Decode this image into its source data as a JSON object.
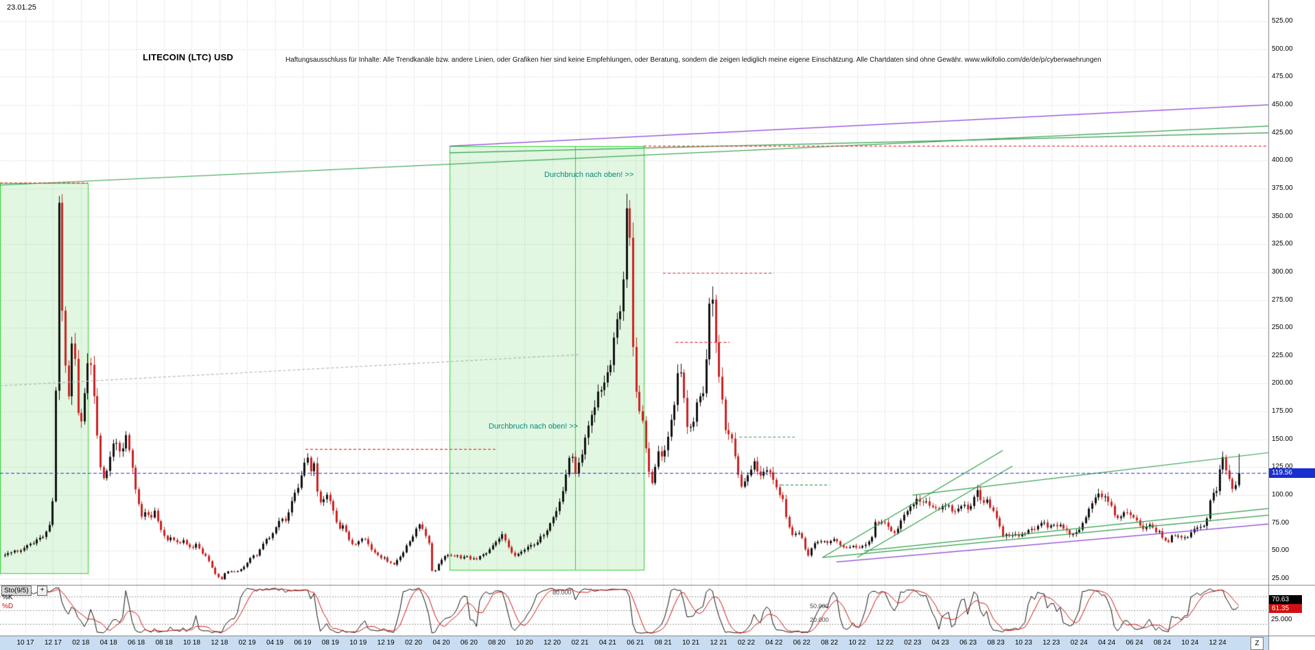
{
  "header": {
    "date_label": "23.01.25",
    "title": "LITECOIN (LTC) USD",
    "disclaimer": "Haftungsausschluss für Inhalte: Alle Trendkanäle bzw. andere Linien, oder Grafiken hier sind keine Empfehlungen, oder Beratung, sondern die zeigen lediglich meine eigene Einschätzung. Alle Chartdaten sind ohne Gewähr.  www.wikifolio.com/de/de/p/cyberwaehrungen"
  },
  "annotations": {
    "breakout_top": "Durchbruch nach oben! >>",
    "breakout_mid": "Durchbruch nach oben! >>"
  },
  "price_axis": {
    "labels": [
      "525.00",
      "500.00",
      "475.00",
      "450.00",
      "425.00",
      "400.00",
      "375.00",
      "350.00",
      "325.00",
      "300.00",
      "275.00",
      "250.00",
      "225.00",
      "200.00",
      "175.00",
      "150.00",
      "125.00",
      "100.00",
      "75.00",
      "50.00",
      "25.00"
    ],
    "current_price": "119.56"
  },
  "date_axis": {
    "labels": [
      "10 17",
      "12 17",
      "02 18",
      "04 18",
      "06 18",
      "08 18",
      "10 18",
      "12 18",
      "02 19",
      "04 19",
      "06 19",
      "08 19",
      "10 19",
      "12 19",
      "02 20",
      "04 20",
      "06 20",
      "08 20",
      "10 20",
      "12 20",
      "02 21",
      "04 21",
      "06 21",
      "08 21",
      "10 21",
      "12 21",
      "02 22",
      "04 22",
      "06 22",
      "08 22",
      "10 22",
      "12 22",
      "02 23",
      "04 23",
      "06 23",
      "08 23",
      "10 23",
      "12 23",
      "02 24",
      "04 24",
      "06 24",
      "08 24",
      "10 24",
      "12 24"
    ],
    "end_button": "Z"
  },
  "stochastic": {
    "name": "Sto(9/5)",
    "plus_button": "+",
    "k_label": "%K",
    "d_label": "%D",
    "k_value": "70.63",
    "d_value": "61.35",
    "levels": [
      "80.000",
      "50.000",
      "20.000"
    ],
    "axis_label": "25.000"
  },
  "colors": {
    "up": "#111111",
    "down": "#cc2222",
    "box_fill": "rgba(140,225,140,0.26)",
    "box_border": "#2fd32f",
    "green_line": "#2e9e4a",
    "purple_line": "#8a3fd8",
    "red_dashed": "#e83030",
    "gray_dashed": "#b5b5b5",
    "blue_price": "#1a2de0",
    "grid": "#c9c9c9",
    "k_color": "#111111",
    "d_color": "#d01111",
    "annotation": "#00897b",
    "badge_blue": "#1a2fd0",
    "date_strip": "#c8ddf2"
  },
  "chart_data": {
    "type": "candlestick",
    "title": "LITECOIN (LTC) USD",
    "timeframe": "weekly",
    "x_range": [
      "2017-08",
      "2025-02"
    ],
    "ylim": [
      25,
      525
    ],
    "y_tick_step": 25,
    "current_price": 119.56,
    "indicator": {
      "type": "stochastic",
      "label": "Sto(9/5)",
      "levels": [
        80,
        50,
        20
      ],
      "k": 70.63,
      "d": 61.35
    },
    "price_path": [
      [
        -1.5,
        46
      ],
      [
        -1,
        50
      ],
      [
        -0.5,
        48
      ],
      [
        0,
        53
      ],
      [
        0.5,
        57
      ],
      [
        1,
        61
      ],
      [
        1.5,
        66
      ],
      [
        1.9,
        82
      ],
      [
        2.1,
        130
      ],
      [
        2.3,
        300
      ],
      [
        2.45,
        380
      ],
      [
        2.6,
        280
      ],
      [
        2.8,
        230
      ],
      [
        3.1,
        185
      ],
      [
        3.35,
        243
      ],
      [
        3.6,
        215
      ],
      [
        3.85,
        163
      ],
      [
        4.1,
        172
      ],
      [
        4.35,
        208
      ],
      [
        4.6,
        222
      ],
      [
        4.85,
        205
      ],
      [
        5.1,
        168
      ],
      [
        5.35,
        128
      ],
      [
        5.6,
        115
      ],
      [
        5.9,
        124
      ],
      [
        6.2,
        140
      ],
      [
        6.5,
        152
      ],
      [
        6.8,
        138
      ],
      [
        7.1,
        148
      ],
      [
        7.35,
        155
      ],
      [
        7.6,
        130
      ],
      [
        7.85,
        112
      ],
      [
        8.1,
        96
      ],
      [
        8.4,
        80
      ],
      [
        8.7,
        88
      ],
      [
        9,
        79
      ],
      [
        9.3,
        85
      ],
      [
        9.6,
        74
      ],
      [
        9.9,
        65
      ],
      [
        10.2,
        59
      ],
      [
        10.5,
        62
      ],
      [
        10.8,
        58
      ],
      [
        11.1,
        57
      ],
      [
        11.4,
        60
      ],
      [
        11.7,
        55
      ],
      [
        12,
        52
      ],
      [
        12.3,
        55
      ],
      [
        12.6,
        50
      ],
      [
        12.9,
        46
      ],
      [
        13.2,
        42
      ],
      [
        13.5,
        33
      ],
      [
        13.8,
        27
      ],
      [
        14.1,
        24
      ],
      [
        14.4,
        30
      ],
      [
        14.7,
        32
      ],
      [
        15,
        31
      ],
      [
        15.4,
        33
      ],
      [
        15.8,
        36
      ],
      [
        16.1,
        43
      ],
      [
        16.4,
        47
      ],
      [
        16.7,
        45
      ],
      [
        17,
        53
      ],
      [
        17.3,
        59
      ],
      [
        17.6,
        61
      ],
      [
        17.9,
        69
      ],
      [
        18.2,
        75
      ],
      [
        18.5,
        80
      ],
      [
        18.8,
        76
      ],
      [
        19.1,
        90
      ],
      [
        19.4,
        101
      ],
      [
        19.7,
        110
      ],
      [
        20,
        125
      ],
      [
        20.3,
        140
      ],
      [
        20.55,
        120
      ],
      [
        20.8,
        127
      ],
      [
        21.1,
        98
      ],
      [
        21.4,
        90
      ],
      [
        21.7,
        103
      ],
      [
        22,
        94
      ],
      [
        22.3,
        80
      ],
      [
        22.6,
        70
      ],
      [
        22.9,
        73
      ],
      [
        23.2,
        64
      ],
      [
        23.5,
        56
      ],
      [
        23.8,
        56
      ],
      [
        24.1,
        59
      ],
      [
        24.4,
        62
      ],
      [
        24.7,
        56
      ],
      [
        25,
        51
      ],
      [
        25.3,
        47
      ],
      [
        25.6,
        44
      ],
      [
        25.9,
        43
      ],
      [
        26.2,
        40
      ],
      [
        26.5,
        37
      ],
      [
        26.8,
        41
      ],
      [
        27.1,
        46
      ],
      [
        27.4,
        53
      ],
      [
        27.7,
        59
      ],
      [
        28,
        65
      ],
      [
        28.3,
        76
      ],
      [
        28.6,
        70
      ],
      [
        28.9,
        63
      ],
      [
        29.1,
        57
      ],
      [
        29.35,
        29
      ],
      [
        29.6,
        34
      ],
      [
        29.9,
        41
      ],
      [
        30.2,
        44
      ],
      [
        30.5,
        46
      ],
      [
        30.8,
        44
      ],
      [
        31.1,
        47
      ],
      [
        31.4,
        44
      ],
      [
        31.7,
        46
      ],
      [
        32,
        43
      ],
      [
        32.3,
        43
      ],
      [
        32.6,
        43
      ],
      [
        32.9,
        46
      ],
      [
        33.2,
        48
      ],
      [
        33.5,
        52
      ],
      [
        33.8,
        56
      ],
      [
        34.1,
        59
      ],
      [
        34.4,
        64
      ],
      [
        34.7,
        57
      ],
      [
        35,
        50
      ],
      [
        35.3,
        46
      ],
      [
        35.6,
        47
      ],
      [
        35.9,
        50
      ],
      [
        36.2,
        53
      ],
      [
        36.5,
        56
      ],
      [
        36.8,
        57
      ],
      [
        37.1,
        61
      ],
      [
        37.4,
        66
      ],
      [
        37.7,
        71
      ],
      [
        38,
        78
      ],
      [
        38.3,
        86
      ],
      [
        38.6,
        95
      ],
      [
        38.9,
        115
      ],
      [
        39.1,
        128
      ],
      [
        39.35,
        142
      ],
      [
        39.6,
        120
      ],
      [
        39.85,
        125
      ],
      [
        40.1,
        134
      ],
      [
        40.4,
        154
      ],
      [
        40.7,
        172
      ],
      [
        41,
        179
      ],
      [
        41.3,
        196
      ],
      [
        41.6,
        190
      ],
      [
        41.9,
        207
      ],
      [
        42.2,
        220
      ],
      [
        42.5,
        250
      ],
      [
        42.8,
        260
      ],
      [
        43.1,
        290
      ],
      [
        43.3,
        340
      ],
      [
        43.45,
        380
      ],
      [
        43.6,
        330
      ],
      [
        43.8,
        240
      ],
      [
        44,
        195
      ],
      [
        44.2,
        180
      ],
      [
        44.45,
        168
      ],
      [
        44.7,
        145
      ],
      [
        44.95,
        120
      ],
      [
        45.2,
        110
      ],
      [
        45.45,
        126
      ],
      [
        45.7,
        140
      ],
      [
        45.95,
        131
      ],
      [
        46.2,
        144
      ],
      [
        46.5,
        163
      ],
      [
        46.8,
        182
      ],
      [
        47.1,
        222
      ],
      [
        47.35,
        210
      ],
      [
        47.6,
        168
      ],
      [
        47.85,
        158
      ],
      [
        48.1,
        162
      ],
      [
        48.4,
        180
      ],
      [
        48.7,
        188
      ],
      [
        49,
        198
      ],
      [
        49.3,
        268
      ],
      [
        49.5,
        290
      ],
      [
        49.7,
        250
      ],
      [
        49.9,
        210
      ],
      [
        50.15,
        195
      ],
      [
        50.4,
        164
      ],
      [
        50.7,
        152
      ],
      [
        51,
        147
      ],
      [
        51.3,
        122
      ],
      [
        51.6,
        108
      ],
      [
        51.9,
        111
      ],
      [
        52.2,
        118
      ],
      [
        52.5,
        130
      ],
      [
        52.8,
        122
      ],
      [
        53.1,
        117
      ],
      [
        53.4,
        123
      ],
      [
        53.7,
        119
      ],
      [
        54,
        110
      ],
      [
        54.3,
        103
      ],
      [
        54.6,
        97
      ],
      [
        54.9,
        78
      ],
      [
        55.2,
        66
      ],
      [
        55.5,
        64
      ],
      [
        55.8,
        67
      ],
      [
        56.1,
        60
      ],
      [
        56.35,
        44
      ],
      [
        56.6,
        50
      ],
      [
        56.9,
        56
      ],
      [
        57.2,
        59
      ],
      [
        57.5,
        60
      ],
      [
        57.8,
        56
      ],
      [
        58.1,
        59
      ],
      [
        58.4,
        61
      ],
      [
        58.7,
        55
      ],
      [
        59,
        54
      ],
      [
        59.3,
        51
      ],
      [
        59.6,
        55
      ],
      [
        59.9,
        53
      ],
      [
        60.2,
        52
      ],
      [
        60.5,
        55
      ],
      [
        60.8,
        59
      ],
      [
        61.1,
        63
      ],
      [
        61.35,
        79
      ],
      [
        61.6,
        74
      ],
      [
        61.9,
        77
      ],
      [
        62.2,
        73
      ],
      [
        62.5,
        66
      ],
      [
        62.8,
        67
      ],
      [
        63.1,
        76
      ],
      [
        63.4,
        85
      ],
      [
        63.7,
        88
      ],
      [
        64,
        91
      ],
      [
        64.3,
        99
      ],
      [
        64.6,
        91
      ],
      [
        64.9,
        95
      ],
      [
        65.2,
        92
      ],
      [
        65.5,
        86
      ],
      [
        65.8,
        88
      ],
      [
        66.1,
        91
      ],
      [
        66.4,
        93
      ],
      [
        66.7,
        87
      ],
      [
        67,
        84
      ],
      [
        67.3,
        87
      ],
      [
        67.6,
        91
      ],
      [
        67.9,
        88
      ],
      [
        68.2,
        90
      ],
      [
        68.5,
        99
      ],
      [
        68.7,
        106
      ],
      [
        69,
        91
      ],
      [
        69.3,
        97
      ],
      [
        69.6,
        87
      ],
      [
        69.9,
        83
      ],
      [
        70.2,
        74
      ],
      [
        70.4,
        63
      ],
      [
        70.7,
        66
      ],
      [
        71,
        62
      ],
      [
        71.3,
        65
      ],
      [
        71.6,
        63
      ],
      [
        71.9,
        65
      ],
      [
        72.2,
        67
      ],
      [
        72.5,
        69
      ],
      [
        72.8,
        68
      ],
      [
        73.1,
        72
      ],
      [
        73.4,
        75
      ],
      [
        73.7,
        71
      ],
      [
        74,
        74
      ],
      [
        74.3,
        71
      ],
      [
        74.6,
        75
      ],
      [
        74.9,
        71
      ],
      [
        75.2,
        66
      ],
      [
        75.5,
        63
      ],
      [
        75.8,
        68
      ],
      [
        76.1,
        71
      ],
      [
        76.4,
        79
      ],
      [
        76.7,
        88
      ],
      [
        77,
        93
      ],
      [
        77.3,
        106
      ],
      [
        77.6,
        97
      ],
      [
        77.9,
        99
      ],
      [
        78.2,
        93
      ],
      [
        78.5,
        82
      ],
      [
        78.8,
        80
      ],
      [
        79.1,
        83
      ],
      [
        79.4,
        86
      ],
      [
        79.7,
        83
      ],
      [
        80,
        79
      ],
      [
        80.3,
        74
      ],
      [
        80.6,
        71
      ],
      [
        80.9,
        73
      ],
      [
        81.2,
        72
      ],
      [
        81.5,
        68
      ],
      [
        81.8,
        66
      ],
      [
        82.1,
        61
      ],
      [
        82.4,
        57
      ],
      [
        82.7,
        63
      ],
      [
        83,
        65
      ],
      [
        83.3,
        63
      ],
      [
        83.6,
        61
      ],
      [
        83.9,
        64
      ],
      [
        84.2,
        68
      ],
      [
        84.5,
        71
      ],
      [
        84.8,
        70
      ],
      [
        85.1,
        74
      ],
      [
        85.4,
        92
      ],
      [
        85.7,
        101
      ],
      [
        86,
        108
      ],
      [
        86.3,
        138
      ],
      [
        86.5,
        118
      ],
      [
        86.7,
        124
      ],
      [
        86.9,
        108
      ],
      [
        87.1,
        103
      ],
      [
        87.3,
        112
      ],
      [
        87.5,
        136
      ],
      [
        87.7,
        119.56
      ]
    ],
    "boxes": [
      {
        "name": "breakout-box-2017",
        "m0": -1.83,
        "m1": 4.5,
        "p0": 30,
        "p1": 380,
        "inner_line_m": null
      },
      {
        "name": "breakout-box-2020",
        "m0": 30.6,
        "m1": 44.6,
        "p0": 33,
        "p1": 413,
        "inner_line_m": 39.65
      }
    ],
    "trend_lines": [
      {
        "name": "resistance-2017-long",
        "m1": -1.83,
        "p1": 378,
        "m2": 89.65,
        "p2": 431,
        "color": "green",
        "style": "solid"
      },
      {
        "name": "channel-green-2020",
        "m1": 30.6,
        "p1": 407,
        "m2": 89.65,
        "p2": 425,
        "color": "green",
        "style": "solid"
      },
      {
        "name": "channel-purple-2020",
        "m1": 30.6,
        "p1": 413,
        "m2": 89.65,
        "p2": 450,
        "color": "purple",
        "style": "solid"
      },
      {
        "name": "box1-high-level",
        "m1": -1.83,
        "p1": 380,
        "m2": 4.5,
        "p2": 380,
        "color": "red",
        "style": "dashed"
      },
      {
        "name": "box2-high-level",
        "m1": 44.6,
        "p1": 413,
        "m2": 89.65,
        "p2": 413,
        "color": "red",
        "style": "dashed"
      },
      {
        "name": "mid-gray-trend",
        "m1": -1.83,
        "p1": 198,
        "m2": 40,
        "p2": 226,
        "color": "gray",
        "style": "dashed"
      },
      {
        "name": "support-steep-1",
        "m1": 57.5,
        "p1": 44,
        "m2": 70.5,
        "p2": 140,
        "color": "green",
        "style": "solid"
      },
      {
        "name": "support-steep-2",
        "m1": 60,
        "p1": 44,
        "m2": 71.2,
        "p2": 126,
        "color": "green",
        "style": "solid"
      },
      {
        "name": "support-long-green-1",
        "m1": 57.5,
        "p1": 44,
        "m2": 89.65,
        "p2": 82,
        "color": "green",
        "style": "solid"
      },
      {
        "name": "support-long-green-2",
        "m1": 60.5,
        "p1": 50,
        "m2": 89.65,
        "p2": 88,
        "color": "green",
        "style": "solid"
      },
      {
        "name": "support-long-purple",
        "m1": 58.5,
        "p1": 40,
        "m2": 89.65,
        "p2": 74,
        "color": "purple",
        "style": "solid"
      },
      {
        "name": "resistance-2023",
        "m1": 64,
        "p1": 100,
        "m2": 89.65,
        "p2": 138,
        "color": "green",
        "style": "solid"
      },
      {
        "name": "level-2019-high",
        "m1": 20.2,
        "p1": 141,
        "m2": 33.9,
        "p2": 141,
        "color": "red",
        "style": "dashed"
      },
      {
        "name": "level-2021-nov-high",
        "m1": 46,
        "p1": 299,
        "m2": 54,
        "p2": 299,
        "color": "red",
        "style": "dashed"
      },
      {
        "name": "level-2021-sep",
        "m1": 46.9,
        "p1": 237,
        "m2": 50.8,
        "p2": 237,
        "color": "red",
        "style": "dashed"
      },
      {
        "name": "level-2022-green-1",
        "m1": 51.5,
        "p1": 152,
        "m2": 55.5,
        "p2": 152,
        "color": "green",
        "style": "dashed"
      },
      {
        "name": "level-2022-green-2",
        "m1": 54.5,
        "p1": 109,
        "m2": 58,
        "p2": 109,
        "color": "green",
        "style": "dashed"
      },
      {
        "name": "current-price-line",
        "m1": -1.83,
        "p1": 119.56,
        "m2": 89.65,
        "p2": 119.56,
        "color": "blue",
        "style": "dashed"
      }
    ]
  }
}
